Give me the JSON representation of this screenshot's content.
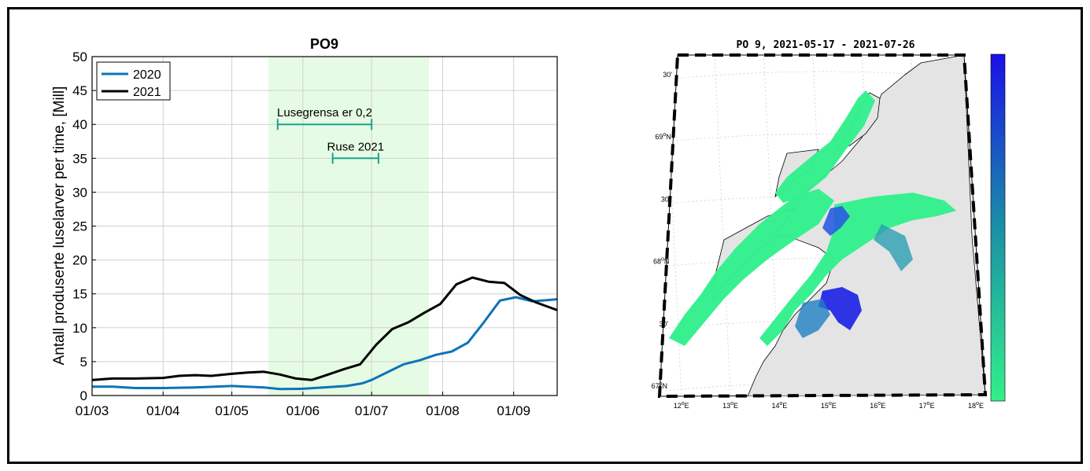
{
  "chart_data": [
    {
      "type": "line",
      "title": "PO9",
      "xlabel": "",
      "ylabel": "Antall produserte luselarver per time, [Mill]",
      "x_ticks": [
        {
          "date": "2021-03-01",
          "label": "01/03"
        },
        {
          "date": "2021-04-01",
          "label": "01/04"
        },
        {
          "date": "2021-05-01",
          "label": "01/05"
        },
        {
          "date": "2021-06-01",
          "label": "01/06"
        },
        {
          "date": "2021-07-01",
          "label": "01/07"
        },
        {
          "date": "2021-08-01",
          "label": "01/08"
        },
        {
          "date": "2021-09-01",
          "label": "01/09"
        }
      ],
      "xlim": [
        "2021-03-01",
        "2021-09-20"
      ],
      "ylim": [
        0,
        50
      ],
      "y_ticks": [
        0,
        5,
        10,
        15,
        20,
        25,
        30,
        35,
        40,
        45,
        50
      ],
      "grid": true,
      "legend": "top-left",
      "shaded_region": {
        "start": "2021-05-17",
        "end": "2021-07-26",
        "color": "#e6fbe3"
      },
      "series": [
        {
          "name": "2020",
          "color": "#0e73b9",
          "points": [
            [
              "2021-03-01",
              1.3
            ],
            [
              "2021-03-10",
              1.3
            ],
            [
              "2021-03-20",
              1.1
            ],
            [
              "2021-04-01",
              1.1
            ],
            [
              "2021-04-15",
              1.2
            ],
            [
              "2021-05-01",
              1.4
            ],
            [
              "2021-05-15",
              1.2
            ],
            [
              "2021-05-22",
              0.95
            ],
            [
              "2021-06-01",
              1.0
            ],
            [
              "2021-06-10",
              1.2
            ],
            [
              "2021-06-20",
              1.4
            ],
            [
              "2021-06-27",
              1.8
            ],
            [
              "2021-07-01",
              2.3
            ],
            [
              "2021-07-07",
              3.3
            ],
            [
              "2021-07-15",
              4.6
            ],
            [
              "2021-07-22",
              5.2
            ],
            [
              "2021-07-29",
              6.0
            ],
            [
              "2021-08-05",
              6.5
            ],
            [
              "2021-08-12",
              7.8
            ],
            [
              "2021-08-19",
              10.8
            ],
            [
              "2021-08-26",
              14.0
            ],
            [
              "2021-09-02",
              14.5
            ],
            [
              "2021-09-09",
              13.9
            ],
            [
              "2021-09-20",
              14.2
            ]
          ]
        },
        {
          "name": "2021",
          "color": "#000000",
          "points": [
            [
              "2021-03-01",
              2.3
            ],
            [
              "2021-03-10",
              2.5
            ],
            [
              "2021-03-20",
              2.5
            ],
            [
              "2021-04-01",
              2.6
            ],
            [
              "2021-04-08",
              2.9
            ],
            [
              "2021-04-15",
              3.0
            ],
            [
              "2021-04-22",
              2.9
            ],
            [
              "2021-05-01",
              3.2
            ],
            [
              "2021-05-08",
              3.4
            ],
            [
              "2021-05-15",
              3.5
            ],
            [
              "2021-05-22",
              3.1
            ],
            [
              "2021-05-29",
              2.5
            ],
            [
              "2021-06-05",
              2.3
            ],
            [
              "2021-06-12",
              3.1
            ],
            [
              "2021-06-19",
              3.9
            ],
            [
              "2021-06-26",
              4.6
            ],
            [
              "2021-07-03",
              7.5
            ],
            [
              "2021-07-10",
              9.8
            ],
            [
              "2021-07-17",
              10.8
            ],
            [
              "2021-07-24",
              12.2
            ],
            [
              "2021-07-31",
              13.5
            ],
            [
              "2021-08-07",
              16.4
            ],
            [
              "2021-08-14",
              17.4
            ],
            [
              "2021-08-21",
              16.8
            ],
            [
              "2021-08-28",
              16.6
            ],
            [
              "2021-09-04",
              14.8
            ],
            [
              "2021-09-11",
              13.7
            ],
            [
              "2021-09-20",
              12.6
            ]
          ]
        }
      ],
      "annotations": [
        {
          "text": "Lusegrensa er 0,2",
          "start": "2021-05-21",
          "end": "2021-07-01",
          "y": 40,
          "color": "#1aa391"
        },
        {
          "text": "Ruse 2021",
          "start": "2021-06-14",
          "end": "2021-07-04",
          "y": 35,
          "color": "#1aa391"
        }
      ]
    },
    {
      "type": "heatmap",
      "title": "PO 9, 2021-05-17 - 2021-07-26",
      "x_ticks": [
        {
          "lon": 12,
          "label": "12",
          "unit": "o",
          "hemi": "E"
        },
        {
          "lon": 13,
          "label": "13",
          "unit": "o",
          "hemi": "E"
        },
        {
          "lon": 14,
          "label": "14",
          "unit": "o",
          "hemi": "E"
        },
        {
          "lon": 15,
          "label": "15",
          "unit": "o",
          "hemi": "E"
        },
        {
          "lon": 16,
          "label": "16",
          "unit": "o",
          "hemi": "E"
        },
        {
          "lon": 17,
          "label": "17",
          "unit": "o",
          "hemi": "E"
        },
        {
          "lon": 18,
          "label": "18",
          "unit": "o",
          "hemi": "E"
        }
      ],
      "y_ticks": [
        {
          "lat": 69.5,
          "label": "30'"
        },
        {
          "lat": 69.0,
          "label": "69",
          "unit": "o",
          "hemi": "N"
        },
        {
          "lat": 68.5,
          "label": "30'"
        },
        {
          "lat": 68.0,
          "label": "68",
          "unit": "o",
          "hemi": "N"
        },
        {
          "lat": 67.5,
          "label": "30'"
        },
        {
          "lat": 67.0,
          "label": "67",
          "unit": "o",
          "hemi": "N"
        }
      ],
      "colormap": {
        "low": "#33f08a",
        "high": "#1a10e8"
      },
      "land_color": "#e6e6e6"
    }
  ]
}
